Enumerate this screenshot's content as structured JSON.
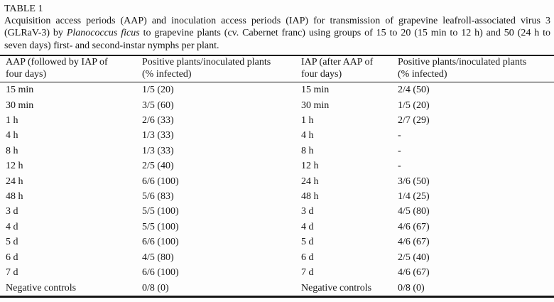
{
  "document": {
    "table_label": "TABLE 1",
    "caption": {
      "part1": "Acquisition access periods (AAP) and inoculation access periods (IAP) for transmission of grapevine leafroll-associated virus 3 (GLRaV-3) by ",
      "italic": "Planococcus ficus",
      "part2": " to grapevine plants (cv. Cabernet franc) using groups of 15 to 20 (15 min to 12 h) and 50 (24 h to seven days) first- and second-instar nymphs per plant."
    }
  },
  "table": {
    "headers": {
      "col1": "AAP (followed by IAP of\nfour days)",
      "col2": "Positive plants/inoculated plants\n(% infected)",
      "col3": "IAP (after AAP of\nfour days)",
      "col4": "Positive plants/inoculated plants\n(% infected)"
    },
    "rows": [
      {
        "aap": "15 min",
        "aap_result": "1/5 (20)",
        "iap": "15 min",
        "iap_result": "2/4 (50)"
      },
      {
        "aap": "30 min",
        "aap_result": "3/5 (60)",
        "iap": "30 min",
        "iap_result": "1/5 (20)"
      },
      {
        "aap": "1 h",
        "aap_result": "2/6 (33)",
        "iap": "1 h",
        "iap_result": "2/7 (29)"
      },
      {
        "aap": "4 h",
        "aap_result": "1/3 (33)",
        "iap": "4 h",
        "iap_result": "-"
      },
      {
        "aap": "8 h",
        "aap_result": "1/3 (33)",
        "iap": "8 h",
        "iap_result": "-"
      },
      {
        "aap": "12 h",
        "aap_result": "2/5 (40)",
        "iap": "12 h",
        "iap_result": "-"
      },
      {
        "aap": "24 h",
        "aap_result": "6/6 (100)",
        "iap": "24 h",
        "iap_result": "3/6 (50)"
      },
      {
        "aap": "48 h",
        "aap_result": "5/6 (83)",
        "iap": "48 h",
        "iap_result": "1/4 (25)"
      },
      {
        "aap": "3 d",
        "aap_result": "5/5 (100)",
        "iap": "3 d",
        "iap_result": "4/5 (80)"
      },
      {
        "aap": "4 d",
        "aap_result": "5/5 (100)",
        "iap": "4 d",
        "iap_result": "4/6 (67)"
      },
      {
        "aap": "5 d",
        "aap_result": "6/6 (100)",
        "iap": "5 d",
        "iap_result": "4/6 (67)"
      },
      {
        "aap": "6 d",
        "aap_result": "4/5 (80)",
        "iap": "6 d",
        "iap_result": "2/5 (40)"
      },
      {
        "aap": "7 d",
        "aap_result": "6/6 (100)",
        "iap": "7 d",
        "iap_result": "4/6 (67)"
      },
      {
        "aap": "Negative controls",
        "aap_result": "0/8 (0)",
        "iap": "Negative controls",
        "iap_result": "0/8 (0)"
      }
    ]
  },
  "colors": {
    "text": "#161616",
    "background": "#fdfdfd",
    "rule": "#161616"
  }
}
